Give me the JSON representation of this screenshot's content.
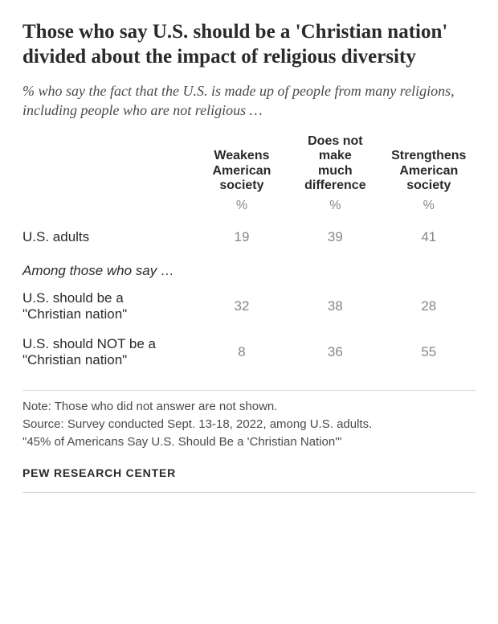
{
  "title": "Those who say U.S. should be a 'Christian nation' divided about the impact of religious diversity",
  "subtitle": "% who say the fact that the U.S. is made up of people from many religions, including people who are not religious …",
  "table": {
    "columns": [
      {
        "lines": [
          "Weakens",
          "American",
          "society"
        ]
      },
      {
        "lines": [
          "Does not",
          "make",
          "much",
          "difference"
        ]
      },
      {
        "lines": [
          "Strengthens",
          "American",
          "society"
        ]
      }
    ],
    "unit": "%",
    "rows": [
      {
        "label": "U.S. adults",
        "values": [
          19,
          39,
          41
        ]
      }
    ],
    "section_head": "Among those who say …",
    "sub_rows": [
      {
        "label_lines": [
          "U.S. should be a",
          "\"Christian nation\""
        ],
        "values": [
          32,
          38,
          28
        ]
      },
      {
        "label_lines": [
          "U.S. should NOT be a",
          "\"Christian nation\""
        ],
        "values": [
          8,
          36,
          55
        ]
      }
    ]
  },
  "notes": [
    "Note: Those who did not answer are not shown.",
    "Source: Survey conducted Sept. 13-18, 2022, among U.S. adults.",
    "\"45% of Americans Say U.S. Should Be a 'Christian Nation'\""
  ],
  "attribution": "PEW RESEARCH CENTER",
  "style": {
    "title_fontsize": 25,
    "subtitle_fontsize": 18,
    "table_fontsize": 17,
    "notes_fontsize": 15,
    "background_color": "#ffffff",
    "text_color": "#2a2a2a",
    "value_color": "#868686",
    "divider_color": "#d8d8d8"
  }
}
